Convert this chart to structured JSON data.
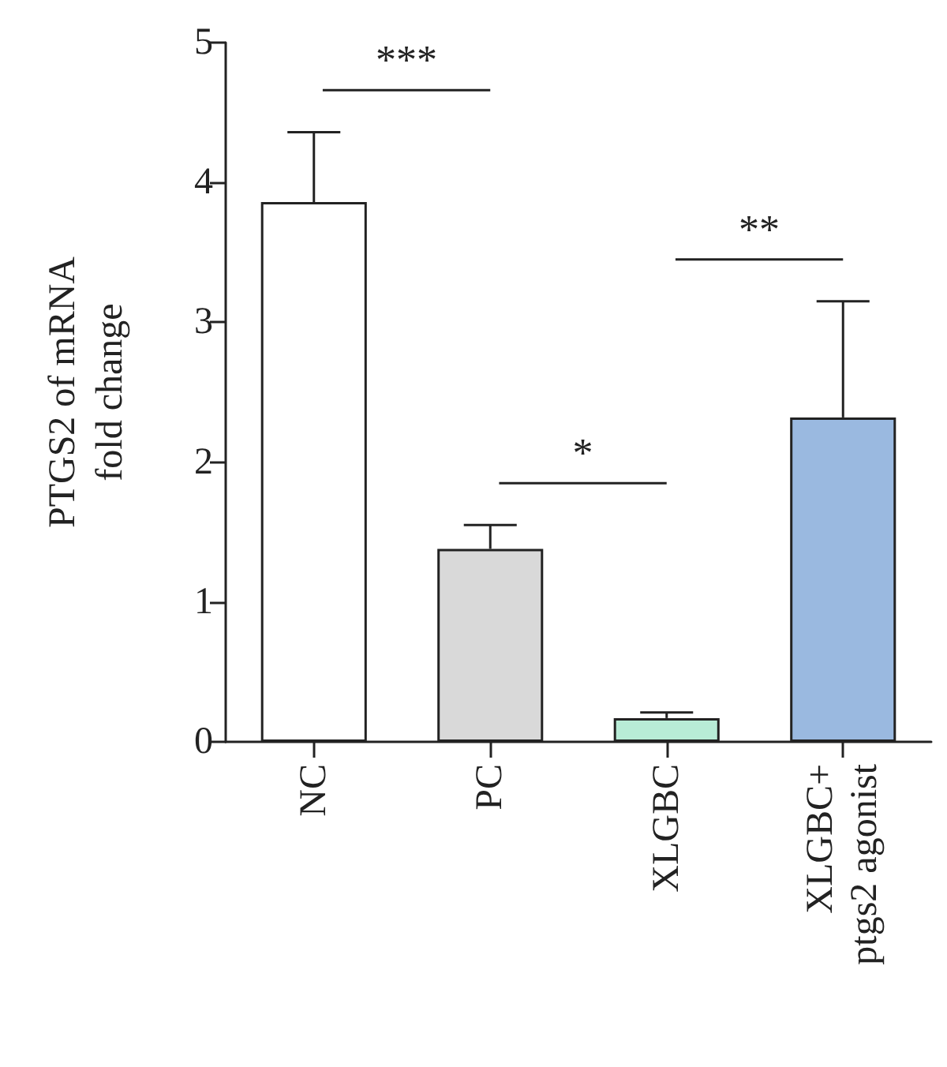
{
  "chart_data": {
    "type": "bar",
    "ylabel": "PTGS2 of mRNA\nfold change",
    "categories": [
      "NC",
      "PC",
      "XLGBC",
      "XLGBC+\nptgs2 agonist"
    ],
    "values": [
      3.86,
      1.38,
      0.17,
      2.32
    ],
    "colors": [
      "#ffffff",
      "#d9d9d9",
      "#b8ecd6",
      "#9ab9e0"
    ],
    "errors": [
      [
        3.86,
        4.36
      ],
      [
        1.38,
        1.55
      ],
      [
        0.17,
        0.21
      ],
      [
        2.32,
        3.15
      ]
    ],
    "ylim": [
      0,
      5
    ],
    "yticks": [
      0,
      1,
      2,
      3,
      4,
      5
    ],
    "grid": false,
    "annotations": [
      "***",
      "*",
      "**"
    ]
  }
}
